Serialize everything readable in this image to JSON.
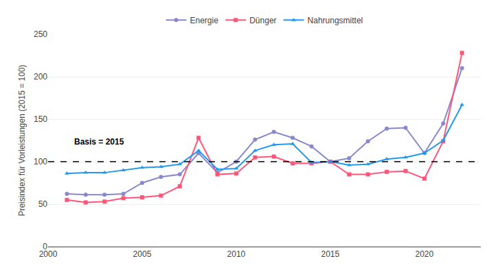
{
  "chart_data": {
    "type": "line",
    "ylabel": "Preisindex für Vorleistungen (2015 = 100)",
    "xlim": [
      2000,
      2023
    ],
    "xticks": [
      2000,
      2005,
      2010,
      2015,
      2020
    ],
    "ylim": [
      0,
      250
    ],
    "yticks": [
      0,
      50,
      100,
      150,
      200,
      250
    ],
    "grid": "y",
    "legend": "top",
    "x": [
      2001,
      2002,
      2003,
      2004,
      2005,
      2006,
      2007,
      2008,
      2009,
      2010,
      2011,
      2012,
      2013,
      2014,
      2015,
      2016,
      2017,
      2018,
      2019,
      2020,
      2021,
      2022
    ],
    "series": [
      {
        "name": "Energie",
        "color": "#8888cc",
        "marker": "circle",
        "values": [
          62,
          61,
          61,
          62,
          75,
          82,
          85,
          110,
          87,
          100,
          126,
          135,
          128,
          118,
          100,
          104,
          124,
          139,
          140,
          110,
          145,
          210
        ]
      },
      {
        "name": "Dünger",
        "color": "#ff5577",
        "marker": "square",
        "values": [
          55,
          52,
          53,
          57,
          58,
          60,
          71,
          128,
          85,
          86,
          105,
          106,
          98,
          98,
          100,
          85,
          85,
          88,
          89,
          80,
          124,
          228
        ]
      },
      {
        "name": "Nahrungsmittel",
        "color": "#2299ee",
        "marker": "triangle",
        "values": [
          86,
          87,
          87,
          90,
          93,
          94,
          97,
          113,
          91,
          92,
          113,
          120,
          121,
          99,
          100,
          96,
          97,
          103,
          105,
          110,
          125,
          167
        ]
      }
    ],
    "reference_line": {
      "y": 100,
      "color": "#000000",
      "line_style": "dashed"
    },
    "annotations": [
      {
        "text": "Basis = 2015",
        "x": 2001.3,
        "y": 116
      }
    ]
  }
}
